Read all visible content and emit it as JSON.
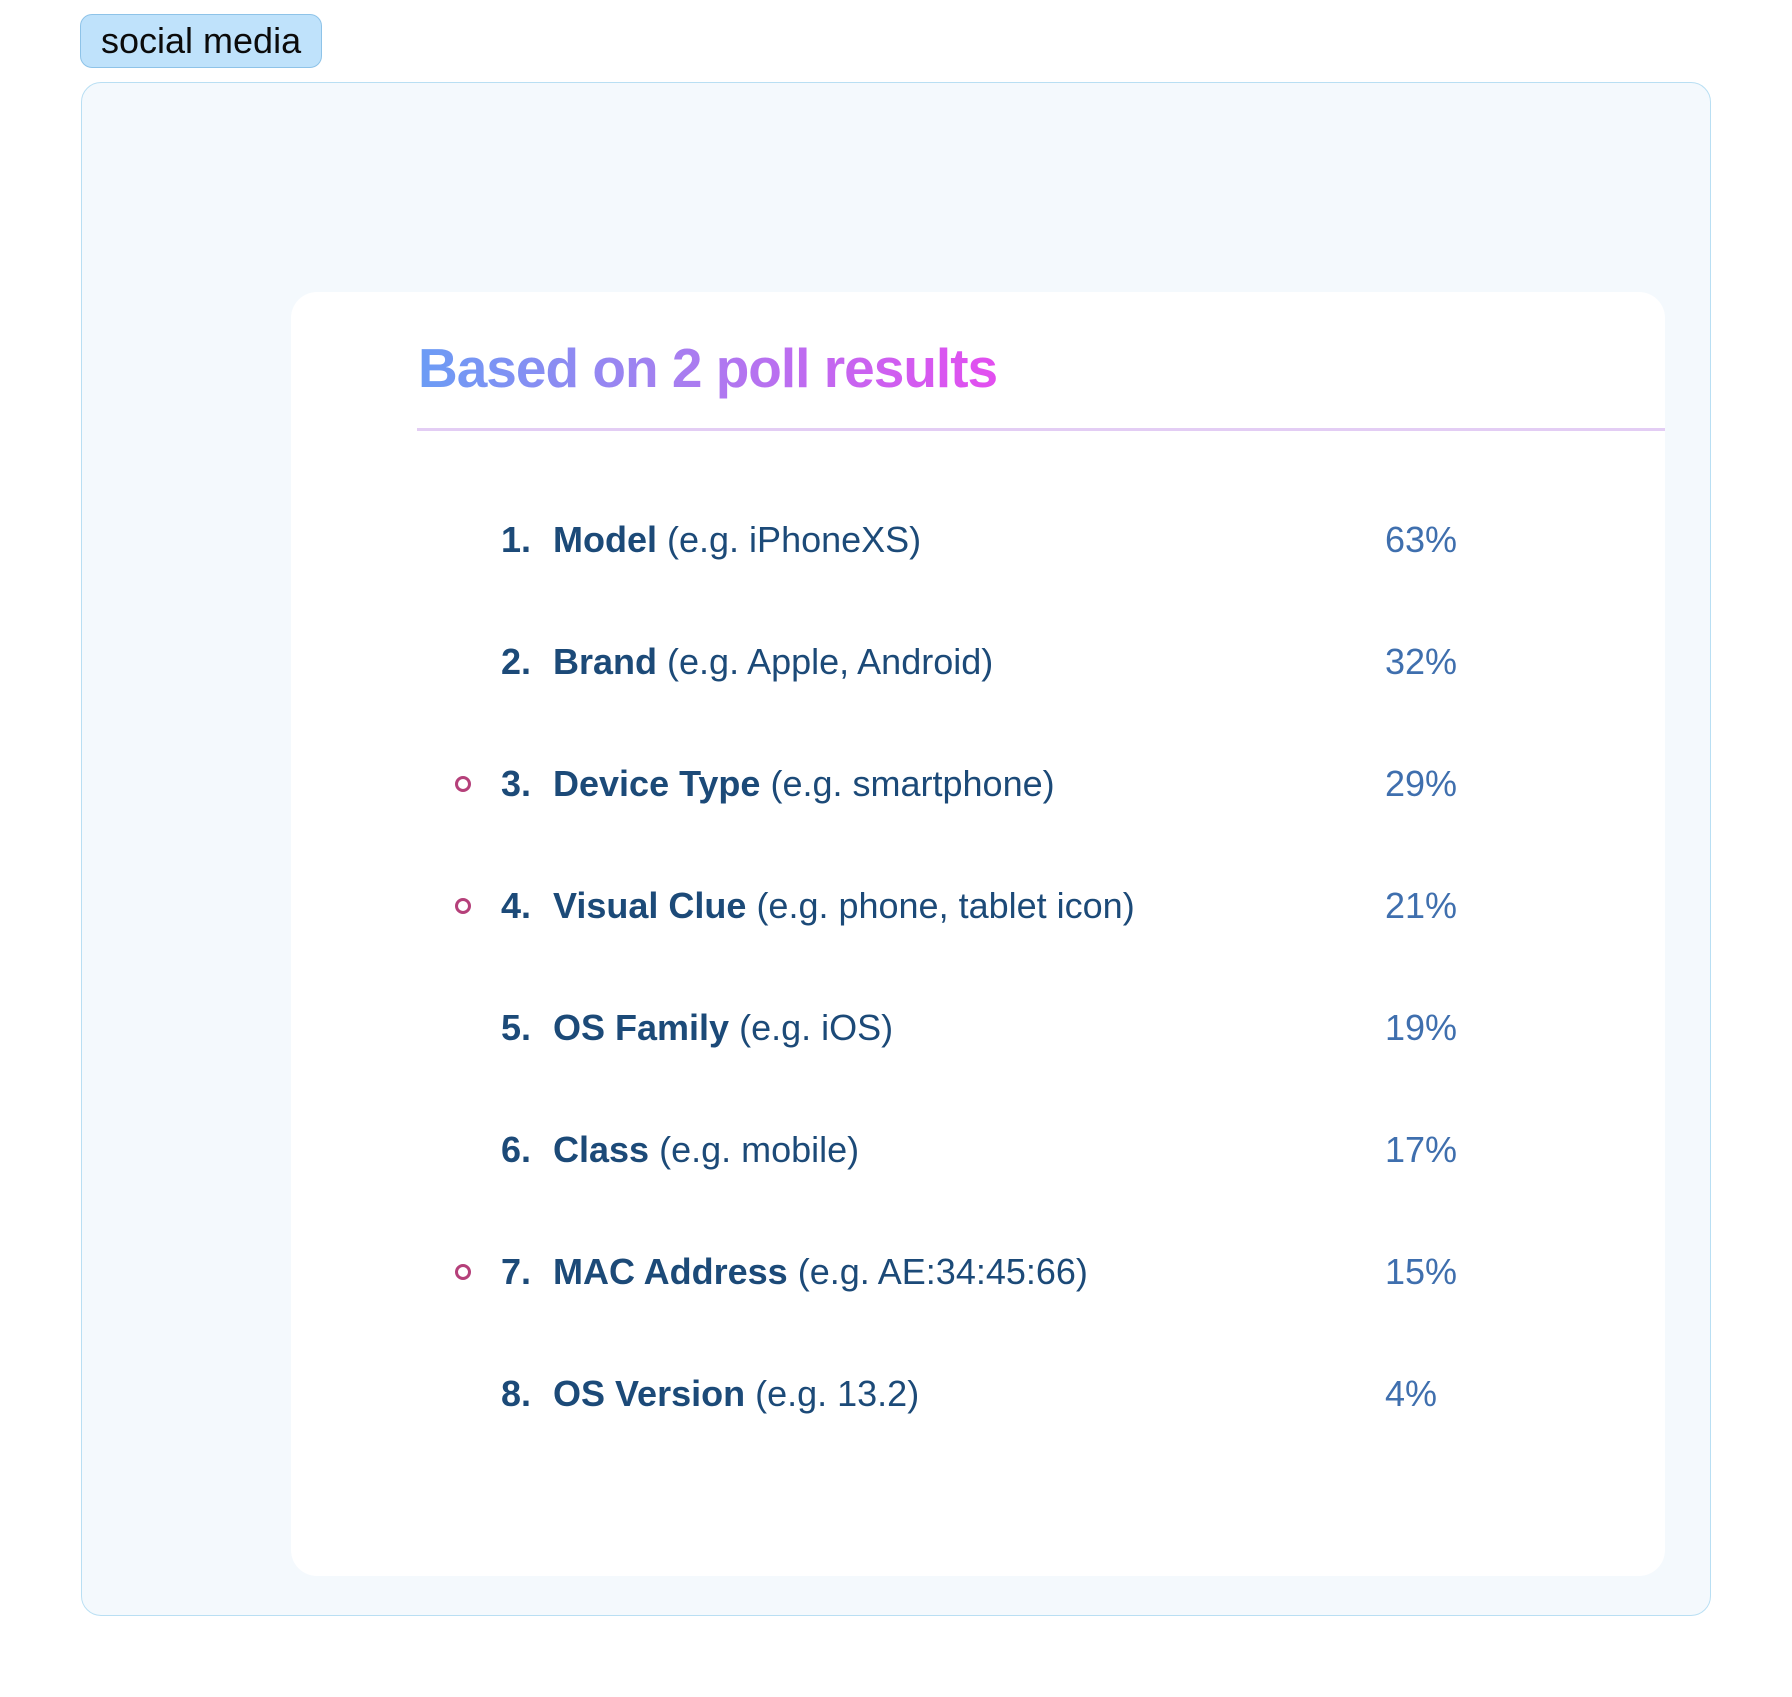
{
  "tag": {
    "label": "social media"
  },
  "card": {
    "title": "Based on 2 poll results",
    "items": [
      {
        "rank": "1.",
        "name": "Model",
        "example": "(e.g. iPhoneXS)",
        "percent": "63%",
        "marked": false
      },
      {
        "rank": "2.",
        "name": "Brand",
        "example": "(e.g. Apple, Android)",
        "percent": "32%",
        "marked": false
      },
      {
        "rank": "3.",
        "name": "Device Type",
        "example": "(e.g. smartphone)",
        "percent": "29%",
        "marked": true
      },
      {
        "rank": "4.",
        "name": "Visual Clue",
        "example": "(e.g. phone, tablet icon)",
        "percent": "21%",
        "marked": true
      },
      {
        "rank": "5.",
        "name": "OS Family",
        "example": "(e.g. iOS)",
        "percent": "19%",
        "marked": false
      },
      {
        "rank": "6.",
        "name": "Class",
        "example": "(e.g. mobile)",
        "percent": "17%",
        "marked": false
      },
      {
        "rank": "7.",
        "name": "MAC Address",
        "example": "(e.g. AE:34:45:66)",
        "percent": "15%",
        "marked": true
      },
      {
        "rank": "8.",
        "name": "OS Version",
        "example": "(e.g. 13.2)",
        "percent": "4%",
        "marked": false
      }
    ]
  },
  "colors": {
    "marker": "#b5407a",
    "text": "#1c4a78",
    "percent": "#3f6fae",
    "title_gradient_start": "#6b9cf5",
    "title_gradient_end": "#e34ef0"
  }
}
